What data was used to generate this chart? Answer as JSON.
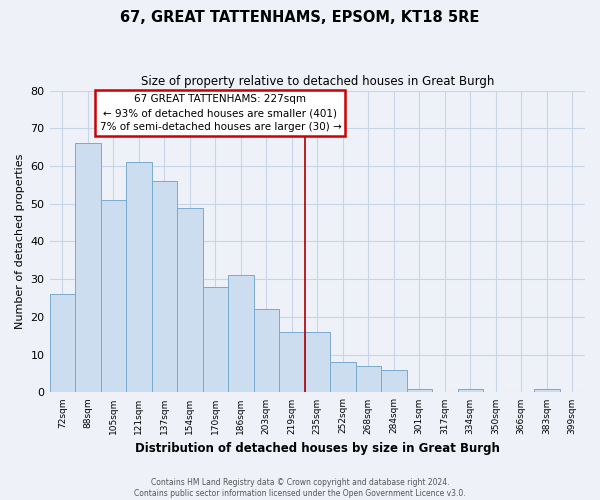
{
  "title": "67, GREAT TATTENHAMS, EPSOM, KT18 5RE",
  "subtitle": "Size of property relative to detached houses in Great Burgh",
  "xlabel": "Distribution of detached houses by size in Great Burgh",
  "ylabel": "Number of detached properties",
  "bin_labels": [
    "72sqm",
    "88sqm",
    "105sqm",
    "121sqm",
    "137sqm",
    "154sqm",
    "170sqm",
    "186sqm",
    "203sqm",
    "219sqm",
    "235sqm",
    "252sqm",
    "268sqm",
    "284sqm",
    "301sqm",
    "317sqm",
    "334sqm",
    "350sqm",
    "366sqm",
    "383sqm",
    "399sqm"
  ],
  "bar_values": [
    26,
    66,
    51,
    61,
    56,
    49,
    28,
    31,
    22,
    16,
    16,
    8,
    7,
    6,
    1,
    0,
    1,
    0,
    0,
    1,
    0
  ],
  "bar_color": "#ccddf0",
  "bar_edge_color": "#7aaacf",
  "ylim": [
    0,
    80
  ],
  "yticks": [
    0,
    10,
    20,
    30,
    40,
    50,
    60,
    70,
    80
  ],
  "vline_x_index": 10,
  "vline_color": "#aa0000",
  "annotation_title": "67 GREAT TATTENHAMS: 227sqm",
  "annotation_line1": "← 93% of detached houses are smaller (401)",
  "annotation_line2": "7% of semi-detached houses are larger (30) →",
  "footer1": "Contains HM Land Registry data © Crown copyright and database right 2024.",
  "footer2": "Contains public sector information licensed under the Open Government Licence v3.0.",
  "bg_color": "#eef2f8",
  "grid_color": "#c8d4e8"
}
